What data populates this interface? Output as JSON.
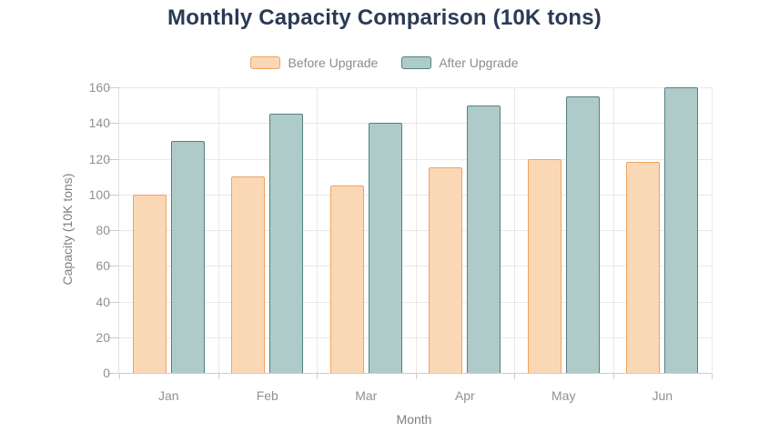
{
  "title": "Monthly Capacity Comparison (10K tons)",
  "colors": {
    "title": "#2b3a55",
    "grid": "#e8e8e8",
    "axis_line": "#cccccc",
    "tick_label": "#919191",
    "axis_name": "#808080",
    "legend_text": "#8c8c8c",
    "background": "#ffffff"
  },
  "chart_data": {
    "type": "bar",
    "title": "Monthly Capacity Comparison (10K tons)",
    "categories": [
      "Jan",
      "Feb",
      "Mar",
      "Apr",
      "May",
      "Jun"
    ],
    "series": [
      {
        "name": "Before Upgrade",
        "values": [
          100,
          110,
          105,
          115,
          120,
          118
        ],
        "fill": "#fad8b6",
        "border": "#efa35e"
      },
      {
        "name": "After Upgrade",
        "values": [
          130,
          145,
          140,
          150,
          155,
          160
        ],
        "fill": "#aecbca",
        "border": "#53807f"
      }
    ],
    "xlabel": "Month",
    "ylabel": "Capacity (10K tons)",
    "ylim": [
      0,
      160
    ],
    "y_ticks": [
      0,
      20,
      40,
      60,
      80,
      100,
      120,
      140,
      160
    ],
    "grid": true,
    "legend_position": "top"
  }
}
